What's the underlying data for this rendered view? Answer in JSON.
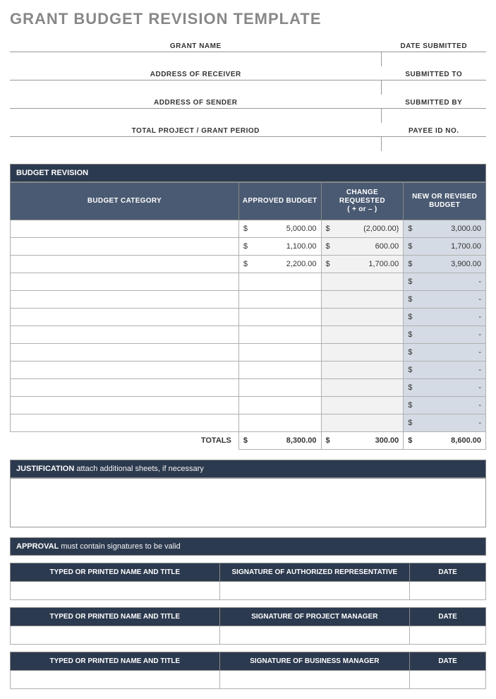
{
  "title": "GRANT BUDGET REVISION TEMPLATE",
  "colors": {
    "title": "#888888",
    "section_bar_bg": "#2c3a4f",
    "table_header_bg": "#4a5a72",
    "header_text": "#ffffff",
    "border": "#999999",
    "cell_border": "#b0b0b0",
    "shade_light": "#f2f2f2",
    "shade_blue": "#d5dbe4",
    "background": "#ffffff"
  },
  "info": {
    "left": [
      "GRANT NAME",
      "ADDRESS OF RECEIVER",
      "ADDRESS OF SENDER",
      "TOTAL PROJECT / GRANT PERIOD"
    ],
    "right": [
      "DATE SUBMITTED",
      "SUBMITTED TO",
      "SUBMITTED BY",
      "PAYEE ID NO."
    ]
  },
  "budget": {
    "section_label": "BUDGET REVISION",
    "columns": [
      "BUDGET CATEGORY",
      "APPROVED BUDGET",
      "CHANGE REQUESTED\n( + or – )",
      "NEW OR REVISED\nBUDGET"
    ],
    "currency": "$",
    "rows": [
      {
        "category": "",
        "approved": "5,000.00",
        "change": "(2,000.00)",
        "revised": "3,000.00"
      },
      {
        "category": "",
        "approved": "1,100.00",
        "change": "600.00",
        "revised": "1,700.00"
      },
      {
        "category": "",
        "approved": "2,200.00",
        "change": "1,700.00",
        "revised": "3,900.00"
      },
      {
        "category": "",
        "approved": "",
        "change": "",
        "revised": "-"
      },
      {
        "category": "",
        "approved": "",
        "change": "",
        "revised": "-"
      },
      {
        "category": "",
        "approved": "",
        "change": "",
        "revised": "-"
      },
      {
        "category": "",
        "approved": "",
        "change": "",
        "revised": "-"
      },
      {
        "category": "",
        "approved": "",
        "change": "",
        "revised": "-"
      },
      {
        "category": "",
        "approved": "",
        "change": "",
        "revised": "-"
      },
      {
        "category": "",
        "approved": "",
        "change": "",
        "revised": "-"
      },
      {
        "category": "",
        "approved": "",
        "change": "",
        "revised": "-"
      },
      {
        "category": "",
        "approved": "",
        "change": "",
        "revised": "-"
      }
    ],
    "totals_label": "TOTALS",
    "totals": {
      "approved": "8,300.00",
      "change": "300.00",
      "revised": "8,600.00"
    }
  },
  "justification": {
    "label_bold": "JUSTIFICATION",
    "label_rest": " attach additional sheets, if necessary"
  },
  "approval": {
    "label_bold": "APPROVAL",
    "label_rest": " must contain signatures to be valid",
    "rows": [
      {
        "name": "TYPED OR PRINTED NAME AND TITLE",
        "sig": "SIGNATURE OF AUTHORIZED REPRESENTATIVE",
        "date": "DATE"
      },
      {
        "name": "TYPED OR PRINTED NAME AND TITLE",
        "sig": "SIGNATURE OF PROJECT MANAGER",
        "date": "DATE"
      },
      {
        "name": "TYPED OR PRINTED NAME AND TITLE",
        "sig": "SIGNATURE OF BUSINESS MANAGER",
        "date": "DATE"
      }
    ]
  }
}
